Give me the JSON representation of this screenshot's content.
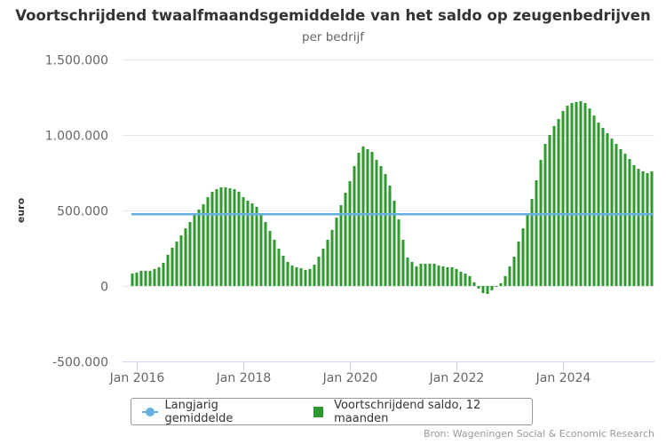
{
  "colors": {
    "bars": "#2e9a2e",
    "average_line": "#65afe0",
    "grid": "#e6e6e6",
    "axis": "#ccd6eb"
  },
  "credits": "Bron: Wageningen Social & Economic Research",
  "chart_data": {
    "type": "bar",
    "title": "Voortschrijdend twaalfmaandsgemiddelde van het saldo op zeugenbedrijven",
    "subtitle": "per bedrijf",
    "xlabel": "",
    "ylabel": "euro",
    "ylim": [
      -500000,
      1500000
    ],
    "yticks": [
      -500000,
      0,
      500000,
      1000000,
      1500000
    ],
    "ytick_labels": [
      "-500.000",
      "0",
      "500.000",
      "1.000.000",
      "1.500.000"
    ],
    "xtick_labels": [
      "Jan 2016",
      "Jan 2018",
      "Jan 2020",
      "Jan 2022",
      "Jan 2024"
    ],
    "xtick_months": [
      "2016-01",
      "2018-01",
      "2020-01",
      "2022-01",
      "2024-01"
    ],
    "x_start": "2015-12",
    "x_end": "2025-08",
    "grid": true,
    "legend_position": "bottom",
    "legend": [
      "Langjarig gemiddelde",
      "Voortschrijdend saldo, 12 maanden"
    ],
    "series": [
      {
        "name": "Langjarig gemiddelde",
        "type": "line",
        "value": 475000
      },
      {
        "name": "Voortschrijdend saldo, 12 maanden",
        "type": "bar",
        "values": [
          82000,
          88000,
          100000,
          100000,
          100000,
          112000,
          124000,
          153000,
          206000,
          253000,
          294000,
          335000,
          382000,
          424000,
          471000,
          506000,
          541000,
          588000,
          624000,
          641000,
          653000,
          653000,
          647000,
          641000,
          624000,
          588000,
          565000,
          547000,
          524000,
          476000,
          424000,
          365000,
          306000,
          247000,
          200000,
          159000,
          135000,
          124000,
          118000,
          106000,
          112000,
          141000,
          194000,
          247000,
          306000,
          371000,
          453000,
          535000,
          618000,
          694000,
          794000,
          882000,
          924000,
          906000,
          888000,
          835000,
          794000,
          741000,
          665000,
          565000,
          441000,
          306000,
          188000,
          159000,
          130000,
          147000,
          147000,
          147000,
          147000,
          135000,
          130000,
          124000,
          124000,
          112000,
          94000,
          82000,
          65000,
          24000,
          -18000,
          -47000,
          -53000,
          -29000,
          -6000,
          18000,
          65000,
          130000,
          194000,
          294000,
          382000,
          476000,
          576000,
          700000,
          835000,
          941000,
          1000000,
          1059000,
          1106000,
          1159000,
          1194000,
          1212000,
          1218000,
          1224000,
          1212000,
          1176000,
          1129000,
          1082000,
          1047000,
          1012000,
          976000,
          941000,
          906000,
          876000,
          841000,
          800000,
          776000,
          759000,
          747000,
          759000
        ]
      }
    ]
  }
}
